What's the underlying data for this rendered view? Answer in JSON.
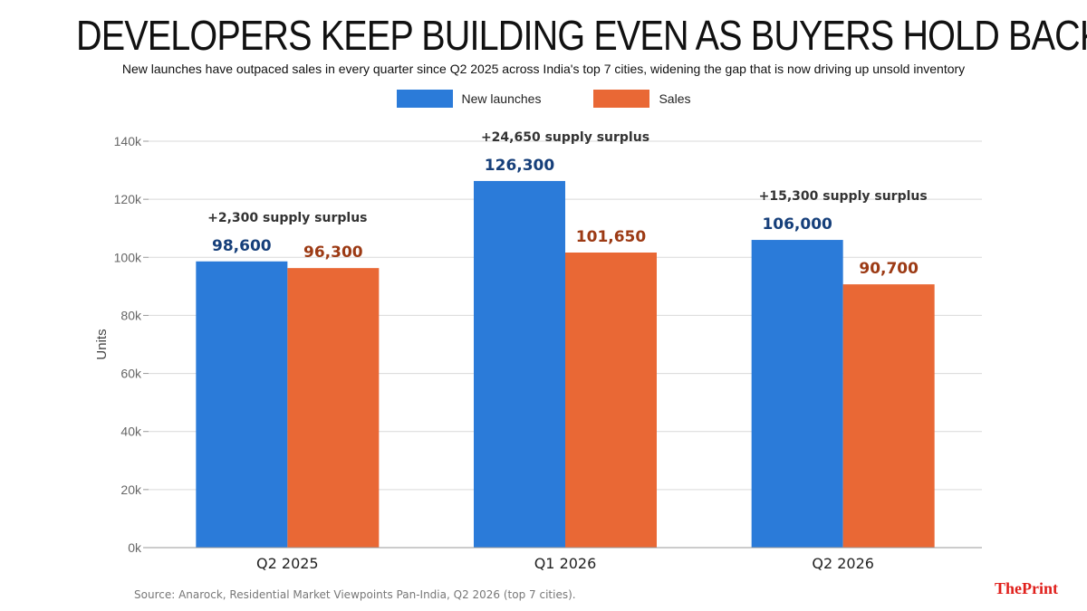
{
  "header": {
    "title": "DEVELOPERS KEEP BUILDING EVEN AS BUYERS HOLD BACK",
    "subtitle": "New launches have outpaced sales in every quarter since Q2 2025 across India's top 7 cities, widening the gap that is now driving up unsold inventory"
  },
  "footer": {
    "source": "Source: Anarock, Residential Market Viewpoints Pan-India, Q2 2026 (top 7 cities).",
    "logo_part1": "The",
    "logo_part2": "Print"
  },
  "colors": {
    "launches": "#2b7bd9",
    "sales": "#e96835",
    "launches_label": "#163f7a",
    "sales_label": "#9c3a14",
    "annotation": "#333333"
  },
  "chart_data": {
    "type": "bar",
    "categories": [
      "Q2 2025",
      "Q1 2026",
      "Q2 2026"
    ],
    "series": [
      {
        "name": "New launches",
        "values": [
          98600,
          126300,
          106000
        ],
        "labels": [
          "98,600",
          "126,300",
          "106,000"
        ]
      },
      {
        "name": "Sales",
        "values": [
          96300,
          101650,
          90700
        ],
        "labels": [
          "96,300",
          "101,650",
          "90,700"
        ]
      }
    ],
    "annotations": [
      "+2,300 supply surplus",
      "+24,650 supply surplus",
      "+15,300 supply surplus"
    ],
    "ylabel": "Units",
    "ylim": [
      0,
      140000
    ],
    "yticks": [
      0,
      20000,
      40000,
      60000,
      80000,
      100000,
      120000,
      140000
    ],
    "ytick_labels": [
      "0k",
      "20k",
      "40k",
      "60k",
      "80k",
      "100k",
      "120k",
      "140k"
    ],
    "grid": true,
    "legend_position": "top-center"
  }
}
